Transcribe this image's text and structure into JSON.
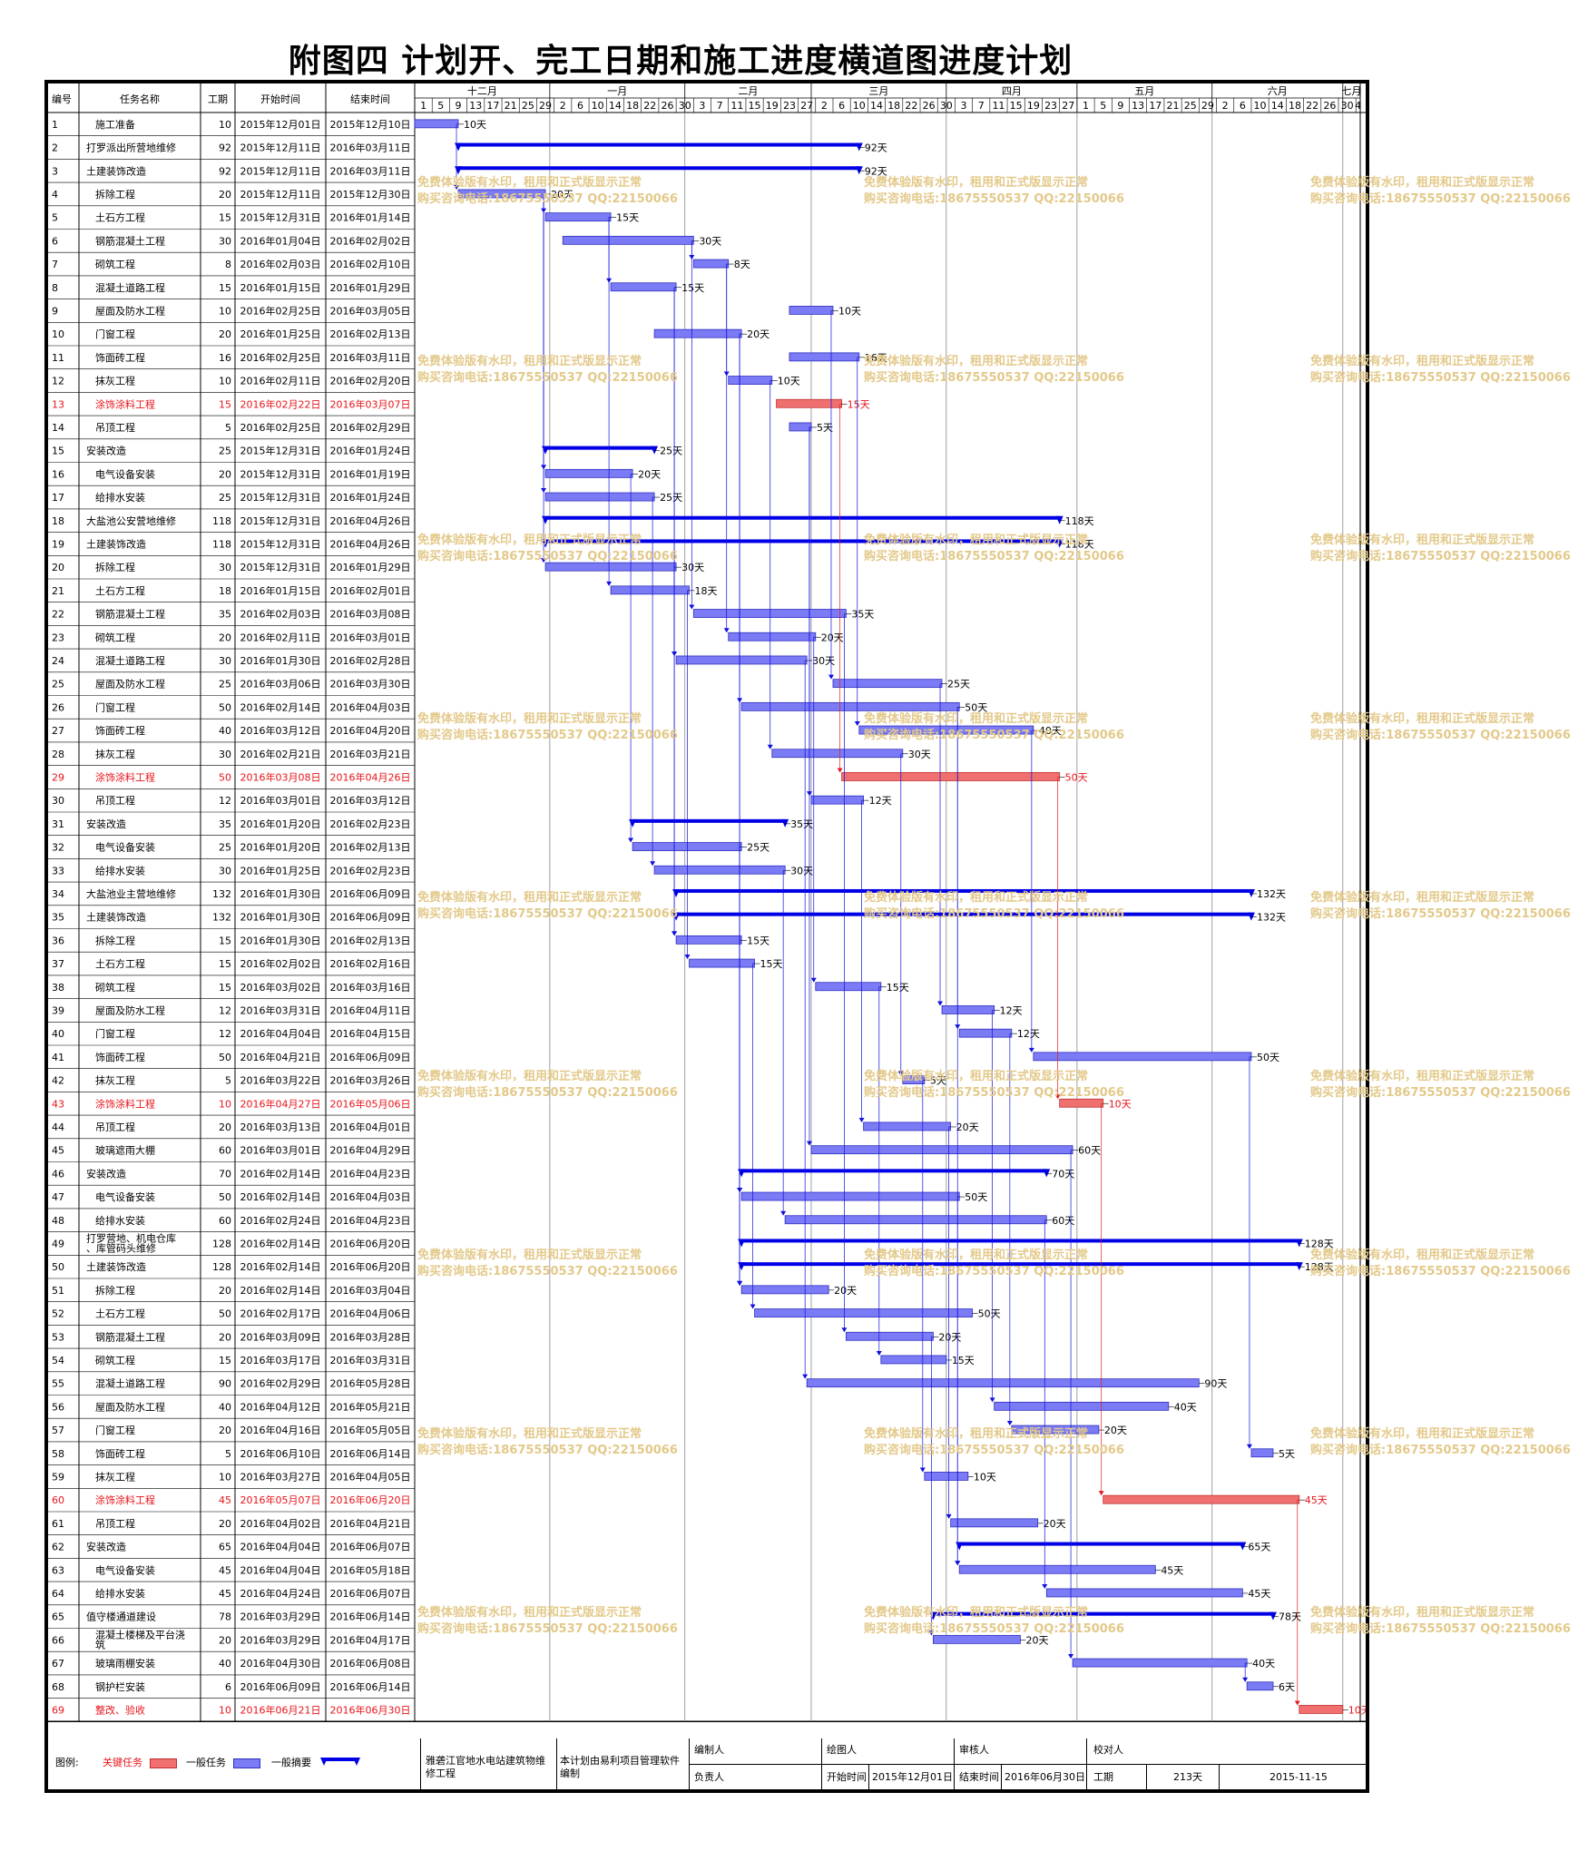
{
  "title": "附图四  计划开、完工日期和施工进度横道图进度计划",
  "table_headers": {
    "id": "编号",
    "name": "任务名称",
    "duration": "工期",
    "start": "开始时间",
    "end": "结束时间"
  },
  "timeline": {
    "months": [
      "十二月",
      "一月",
      "二月",
      "三月",
      "四月",
      "五月",
      "六月",
      "七月"
    ],
    "month_starts": [
      "2015-12-01",
      "2016-01-01",
      "2016-02-01",
      "2016-03-01",
      "2016-04-01",
      "2016-05-01",
      "2016-06-01",
      "2016-07-01"
    ],
    "range": [
      "2015-12-01",
      "2016-07-05"
    ],
    "day_ticks": [
      {
        "date": "2015-12-01",
        "label": "1"
      },
      {
        "date": "2015-12-05",
        "label": "5"
      },
      {
        "date": "2015-12-09",
        "label": "9"
      },
      {
        "date": "2015-12-13",
        "label": "13"
      },
      {
        "date": "2015-12-17",
        "label": "17"
      },
      {
        "date": "2015-12-21",
        "label": "21"
      },
      {
        "date": "2015-12-25",
        "label": "25"
      },
      {
        "date": "2015-12-29",
        "label": "29"
      },
      {
        "date": "2016-01-02",
        "label": "2"
      },
      {
        "date": "2016-01-06",
        "label": "6"
      },
      {
        "date": "2016-01-10",
        "label": "10"
      },
      {
        "date": "2016-01-14",
        "label": "14"
      },
      {
        "date": "2016-01-18",
        "label": "18"
      },
      {
        "date": "2016-01-22",
        "label": "22"
      },
      {
        "date": "2016-01-26",
        "label": "26"
      },
      {
        "date": "2016-01-30",
        "label": "30"
      },
      {
        "date": "2016-02-03",
        "label": "3"
      },
      {
        "date": "2016-02-07",
        "label": "7"
      },
      {
        "date": "2016-02-11",
        "label": "11"
      },
      {
        "date": "2016-02-15",
        "label": "15"
      },
      {
        "date": "2016-02-19",
        "label": "19"
      },
      {
        "date": "2016-02-23",
        "label": "23"
      },
      {
        "date": "2016-02-27",
        "label": "27"
      },
      {
        "date": "2016-03-02",
        "label": "2"
      },
      {
        "date": "2016-03-06",
        "label": "6"
      },
      {
        "date": "2016-03-10",
        "label": "10"
      },
      {
        "date": "2016-03-14",
        "label": "14"
      },
      {
        "date": "2016-03-18",
        "label": "18"
      },
      {
        "date": "2016-03-22",
        "label": "22"
      },
      {
        "date": "2016-03-26",
        "label": "26"
      },
      {
        "date": "2016-03-30",
        "label": "30"
      },
      {
        "date": "2016-04-03",
        "label": "3"
      },
      {
        "date": "2016-04-07",
        "label": "7"
      },
      {
        "date": "2016-04-11",
        "label": "11"
      },
      {
        "date": "2016-04-15",
        "label": "15"
      },
      {
        "date": "2016-04-19",
        "label": "19"
      },
      {
        "date": "2016-04-23",
        "label": "23"
      },
      {
        "date": "2016-04-27",
        "label": "27"
      },
      {
        "date": "2016-05-01",
        "label": "1"
      },
      {
        "date": "2016-05-05",
        "label": "5"
      },
      {
        "date": "2016-05-09",
        "label": "9"
      },
      {
        "date": "2016-05-13",
        "label": "13"
      },
      {
        "date": "2016-05-17",
        "label": "17"
      },
      {
        "date": "2016-05-21",
        "label": "21"
      },
      {
        "date": "2016-05-25",
        "label": "25"
      },
      {
        "date": "2016-05-29",
        "label": "29"
      },
      {
        "date": "2016-06-02",
        "label": "2"
      },
      {
        "date": "2016-06-06",
        "label": "6"
      },
      {
        "date": "2016-06-10",
        "label": "10"
      },
      {
        "date": "2016-06-14",
        "label": "14"
      },
      {
        "date": "2016-06-18",
        "label": "18"
      },
      {
        "date": "2016-06-22",
        "label": "22"
      },
      {
        "date": "2016-06-26",
        "label": "26"
      },
      {
        "date": "2016-06-30",
        "label": "30"
      },
      {
        "date": "2016-07-04",
        "label": "4"
      }
    ]
  },
  "chart_data": {
    "type": "gantt",
    "duration_unit": "天",
    "tasks": [
      {
        "id": 1,
        "name": "施工准备",
        "dur": 10,
        "start": "2015年12月01日",
        "end": "2015年12月10日",
        "kind": "normal"
      },
      {
        "id": 2,
        "name": "打罗派出所营地维修",
        "dur": 92,
        "start": "2015年12月11日",
        "end": "2016年03月11日",
        "kind": "summary"
      },
      {
        "id": 3,
        "name": "土建装饰改造",
        "dur": 92,
        "start": "2015年12月11日",
        "end": "2016年03月11日",
        "kind": "summary"
      },
      {
        "id": 4,
        "name": "拆除工程",
        "dur": 20,
        "start": "2015年12月11日",
        "end": "2015年12月30日",
        "kind": "normal"
      },
      {
        "id": 5,
        "name": "土石方工程",
        "dur": 15,
        "start": "2015年12月31日",
        "end": "2016年01月14日",
        "kind": "normal"
      },
      {
        "id": 6,
        "name": "钢筋混凝土工程",
        "dur": 30,
        "start": "2016年01月04日",
        "end": "2016年02月02日",
        "kind": "normal"
      },
      {
        "id": 7,
        "name": "砌筑工程",
        "dur": 8,
        "start": "2016年02月03日",
        "end": "2016年02月10日",
        "kind": "normal"
      },
      {
        "id": 8,
        "name": "混凝土道路工程",
        "dur": 15,
        "start": "2016年01月15日",
        "end": "2016年01月29日",
        "kind": "normal"
      },
      {
        "id": 9,
        "name": "屋面及防水工程",
        "dur": 10,
        "start": "2016年02月25日",
        "end": "2016年03月05日",
        "kind": "normal"
      },
      {
        "id": 10,
        "name": "门窗工程",
        "dur": 20,
        "start": "2016年01月25日",
        "end": "2016年02月13日",
        "kind": "normal"
      },
      {
        "id": 11,
        "name": "饰面砖工程",
        "dur": 16,
        "start": "2016年02月25日",
        "end": "2016年03月11日",
        "kind": "normal"
      },
      {
        "id": 12,
        "name": "抹灰工程",
        "dur": 10,
        "start": "2016年02月11日",
        "end": "2016年02月20日",
        "kind": "normal"
      },
      {
        "id": 13,
        "name": "涂饰涂料工程",
        "dur": 15,
        "start": "2016年02月22日",
        "end": "2016年03月07日",
        "kind": "critical"
      },
      {
        "id": 14,
        "name": "吊顶工程",
        "dur": 5,
        "start": "2016年02月25日",
        "end": "2016年02月29日",
        "kind": "normal"
      },
      {
        "id": 15,
        "name": "安装改造",
        "dur": 25,
        "start": "2015年12月31日",
        "end": "2016年01月24日",
        "kind": "summary"
      },
      {
        "id": 16,
        "name": "电气设备安装",
        "dur": 20,
        "start": "2015年12月31日",
        "end": "2016年01月19日",
        "kind": "normal"
      },
      {
        "id": 17,
        "name": "给排水安装",
        "dur": 25,
        "start": "2015年12月31日",
        "end": "2016年01月24日",
        "kind": "normal"
      },
      {
        "id": 18,
        "name": "大盐池公安营地维修",
        "dur": 118,
        "start": "2015年12月31日",
        "end": "2016年04月26日",
        "kind": "summary"
      },
      {
        "id": 19,
        "name": "土建装饰改造",
        "dur": 118,
        "start": "2015年12月31日",
        "end": "2016年04月26日",
        "kind": "summary"
      },
      {
        "id": 20,
        "name": "拆除工程",
        "dur": 30,
        "start": "2015年12月31日",
        "end": "2016年01月29日",
        "kind": "normal"
      },
      {
        "id": 21,
        "name": "土石方工程",
        "dur": 18,
        "start": "2016年01月15日",
        "end": "2016年02月01日",
        "kind": "normal"
      },
      {
        "id": 22,
        "name": "钢筋混凝土工程",
        "dur": 35,
        "start": "2016年02月03日",
        "end": "2016年03月08日",
        "kind": "normal"
      },
      {
        "id": 23,
        "name": "砌筑工程",
        "dur": 20,
        "start": "2016年02月11日",
        "end": "2016年03月01日",
        "kind": "normal"
      },
      {
        "id": 24,
        "name": "混凝土道路工程",
        "dur": 30,
        "start": "2016年01月30日",
        "end": "2016年02月28日",
        "kind": "normal"
      },
      {
        "id": 25,
        "name": "屋面及防水工程",
        "dur": 25,
        "start": "2016年03月06日",
        "end": "2016年03月30日",
        "kind": "normal"
      },
      {
        "id": 26,
        "name": "门窗工程",
        "dur": 50,
        "start": "2016年02月14日",
        "end": "2016年04月03日",
        "kind": "normal"
      },
      {
        "id": 27,
        "name": "饰面砖工程",
        "dur": 40,
        "start": "2016年03月12日",
        "end": "2016年04月20日",
        "kind": "normal"
      },
      {
        "id": 28,
        "name": "抹灰工程",
        "dur": 30,
        "start": "2016年02月21日",
        "end": "2016年03月21日",
        "kind": "normal"
      },
      {
        "id": 29,
        "name": "涂饰涂料工程",
        "dur": 50,
        "start": "2016年03月08日",
        "end": "2016年04月26日",
        "kind": "critical"
      },
      {
        "id": 30,
        "name": "吊顶工程",
        "dur": 12,
        "start": "2016年03月01日",
        "end": "2016年03月12日",
        "kind": "normal"
      },
      {
        "id": 31,
        "name": "安装改造",
        "dur": 35,
        "start": "2016年01月20日",
        "end": "2016年02月23日",
        "kind": "summary"
      },
      {
        "id": 32,
        "name": "电气设备安装",
        "dur": 25,
        "start": "2016年01月20日",
        "end": "2016年02月13日",
        "kind": "normal"
      },
      {
        "id": 33,
        "name": "给排水安装",
        "dur": 30,
        "start": "2016年01月25日",
        "end": "2016年02月23日",
        "kind": "normal"
      },
      {
        "id": 34,
        "name": "大盐池业主营地维修",
        "dur": 132,
        "start": "2016年01月30日",
        "end": "2016年06月09日",
        "kind": "summary"
      },
      {
        "id": 35,
        "name": "土建装饰改造",
        "dur": 132,
        "start": "2016年01月30日",
        "end": "2016年06月09日",
        "kind": "summary"
      },
      {
        "id": 36,
        "name": "拆除工程",
        "dur": 15,
        "start": "2016年01月30日",
        "end": "2016年02月13日",
        "kind": "normal"
      },
      {
        "id": 37,
        "name": "土石方工程",
        "dur": 15,
        "start": "2016年02月02日",
        "end": "2016年02月16日",
        "kind": "normal"
      },
      {
        "id": 38,
        "name": "砌筑工程",
        "dur": 15,
        "start": "2016年03月02日",
        "end": "2016年03月16日",
        "kind": "normal"
      },
      {
        "id": 39,
        "name": "屋面及防水工程",
        "dur": 12,
        "start": "2016年03月31日",
        "end": "2016年04月11日",
        "kind": "normal"
      },
      {
        "id": 40,
        "name": "门窗工程",
        "dur": 12,
        "start": "2016年04月04日",
        "end": "2016年04月15日",
        "kind": "normal"
      },
      {
        "id": 41,
        "name": "饰面砖工程",
        "dur": 50,
        "start": "2016年04月21日",
        "end": "2016年06月09日",
        "kind": "normal"
      },
      {
        "id": 42,
        "name": "抹灰工程",
        "dur": 5,
        "start": "2016年03月22日",
        "end": "2016年03月26日",
        "kind": "normal"
      },
      {
        "id": 43,
        "name": "涂饰涂料工程",
        "dur": 10,
        "start": "2016年04月27日",
        "end": "2016年05月06日",
        "kind": "critical"
      },
      {
        "id": 44,
        "name": "吊顶工程",
        "dur": 20,
        "start": "2016年03月13日",
        "end": "2016年04月01日",
        "kind": "normal"
      },
      {
        "id": 45,
        "name": "玻璃遮雨大棚",
        "dur": 60,
        "start": "2016年03月01日",
        "end": "2016年04月29日",
        "kind": "normal"
      },
      {
        "id": 46,
        "name": "安装改造",
        "dur": 70,
        "start": "2016年02月14日",
        "end": "2016年04月23日",
        "kind": "summary"
      },
      {
        "id": 47,
        "name": "电气设备安装",
        "dur": 50,
        "start": "2016年02月14日",
        "end": "2016年04月03日",
        "kind": "normal"
      },
      {
        "id": 48,
        "name": "给排水安装",
        "dur": 60,
        "start": "2016年02月24日",
        "end": "2016年04月23日",
        "kind": "normal"
      },
      {
        "id": 49,
        "name": "打罗营地、机电仓库、库管码头维修",
        "dur": 128,
        "start": "2016年02月14日",
        "end": "2016年06月20日",
        "kind": "summary"
      },
      {
        "id": 50,
        "name": "土建装饰改造",
        "dur": 128,
        "start": "2016年02月14日",
        "end": "2016年06月20日",
        "kind": "summary"
      },
      {
        "id": 51,
        "name": "拆除工程",
        "dur": 20,
        "start": "2016年02月14日",
        "end": "2016年03月04日",
        "kind": "normal"
      },
      {
        "id": 52,
        "name": "土石方工程",
        "dur": 50,
        "start": "2016年02月17日",
        "end": "2016年04月06日",
        "kind": "normal"
      },
      {
        "id": 53,
        "name": "钢筋混凝土工程",
        "dur": 20,
        "start": "2016年03月09日",
        "end": "2016年03月28日",
        "kind": "normal"
      },
      {
        "id": 54,
        "name": "砌筑工程",
        "dur": 15,
        "start": "2016年03月17日",
        "end": "2016年03月31日",
        "kind": "normal"
      },
      {
        "id": 55,
        "name": "混凝土道路工程",
        "dur": 90,
        "start": "2016年02月29日",
        "end": "2016年05月28日",
        "kind": "normal"
      },
      {
        "id": 56,
        "name": "屋面及防水工程",
        "dur": 40,
        "start": "2016年04月12日",
        "end": "2016年05月21日",
        "kind": "normal"
      },
      {
        "id": 57,
        "name": "门窗工程",
        "dur": 20,
        "start": "2016年04月16日",
        "end": "2016年05月05日",
        "kind": "normal"
      },
      {
        "id": 58,
        "name": "饰面砖工程",
        "dur": 5,
        "start": "2016年06月10日",
        "end": "2016年06月14日",
        "kind": "normal"
      },
      {
        "id": 59,
        "name": "抹灰工程",
        "dur": 10,
        "start": "2016年03月27日",
        "end": "2016年04月05日",
        "kind": "normal"
      },
      {
        "id": 60,
        "name": "涂饰涂料工程",
        "dur": 45,
        "start": "2016年05月07日",
        "end": "2016年06月20日",
        "kind": "critical"
      },
      {
        "id": 61,
        "name": "吊顶工程",
        "dur": 20,
        "start": "2016年04月02日",
        "end": "2016年04月21日",
        "kind": "normal"
      },
      {
        "id": 62,
        "name": "安装改造",
        "dur": 65,
        "start": "2016年04月04日",
        "end": "2016年06月07日",
        "kind": "summary"
      },
      {
        "id": 63,
        "name": "电气设备安装",
        "dur": 45,
        "start": "2016年04月04日",
        "end": "2016年05月18日",
        "kind": "normal"
      },
      {
        "id": 64,
        "name": "给排水安装",
        "dur": 45,
        "start": "2016年04月24日",
        "end": "2016年06月07日",
        "kind": "normal"
      },
      {
        "id": 65,
        "name": "值守楼通道建设",
        "dur": 78,
        "start": "2016年03月29日",
        "end": "2016年06月14日",
        "kind": "summary"
      },
      {
        "id": 66,
        "name": "混凝土楼梯及平台浇筑",
        "dur": 20,
        "start": "2016年03月29日",
        "end": "2016年04月17日",
        "kind": "normal"
      },
      {
        "id": 67,
        "name": "玻璃雨棚安装",
        "dur": 40,
        "start": "2016年04月30日",
        "end": "2016年06月08日",
        "kind": "normal"
      },
      {
        "id": 68,
        "name": "钢护栏安装",
        "dur": 6,
        "start": "2016年06月09日",
        "end": "2016年06月14日",
        "kind": "normal"
      },
      {
        "id": 69,
        "name": "整改、验收",
        "dur": 10,
        "start": "2016年06月21日",
        "end": "2016年06月30日",
        "kind": "critical"
      }
    ]
  },
  "colors": {
    "normal": "#7b7bf5",
    "critical": "#f07070",
    "summary": "#0000e6",
    "critical_text": "#e8131a",
    "watermark": "#e3c98a",
    "link_normal": "#1010e0",
    "link_critical": "#e02020"
  },
  "watermark": {
    "line1": "免费体验版有水印，租用和正式版显示正常",
    "line2": "购买咨询电话:18675550537 QQ:22150066"
  },
  "legend": {
    "label": "图例:",
    "critical": "关键任务",
    "normal": "一般任务",
    "summary": "一般摘要"
  },
  "footer": {
    "project": "雅砻江官地水电站建筑物维修工程",
    "software": "本计划由易利项目管理软件编制",
    "compiler_label": "编制人",
    "compiler_value": "",
    "drawer_label": "绘图人",
    "drawer_value": "",
    "reviewer_label": "审核人",
    "reviewer_value": "",
    "checker_label": "校对人",
    "checker_value": "",
    "owner_label": "负责人",
    "owner_value": "",
    "start_label": "开始时间",
    "start_value": "2015年12月01日",
    "end_label": "结束时间",
    "end_value": "2016年06月30日",
    "duration_label": "工期",
    "duration_value": "213天",
    "date_value": "2015-11-15"
  }
}
